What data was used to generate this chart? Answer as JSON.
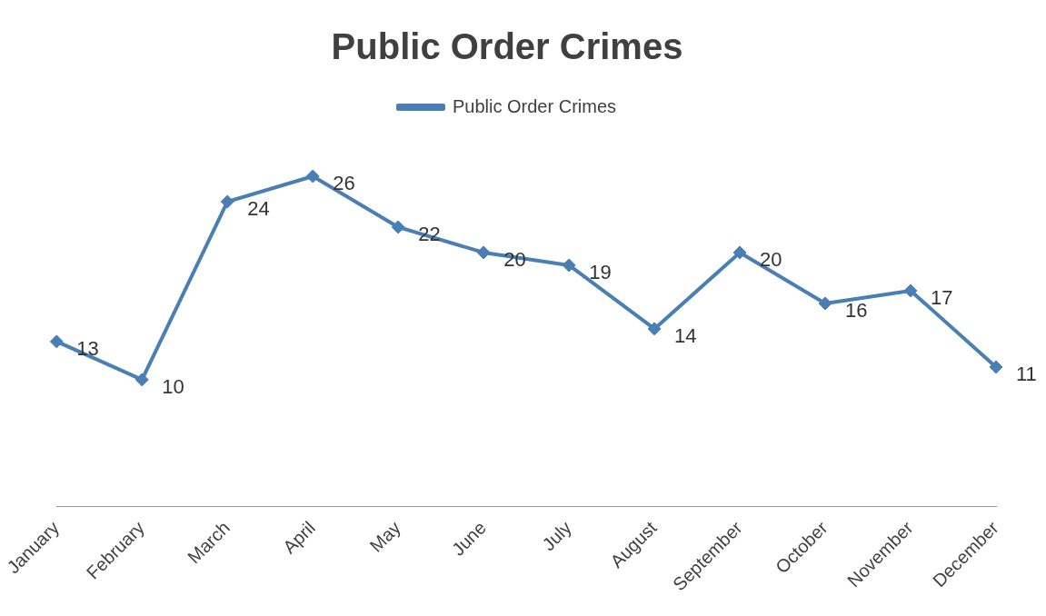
{
  "chart_data": {
    "type": "line",
    "title": "Public Order Crimes",
    "categories": [
      "January",
      "February",
      "March",
      "April",
      "May",
      "June",
      "July",
      "August",
      "September",
      "October",
      "November",
      "December"
    ],
    "series": [
      {
        "name": "Public Order Crimes",
        "color": "#4a7fb5",
        "values": [
          13,
          10,
          24,
          26,
          22,
          20,
          19,
          14,
          20,
          16,
          17,
          11
        ]
      }
    ],
    "data_labels": true,
    "legend": "top",
    "grid": false,
    "marker": "diamond",
    "line_style": "solid",
    "tick_labels": "x"
  }
}
